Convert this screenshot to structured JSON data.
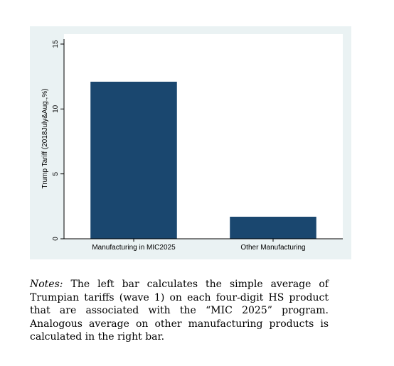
{
  "chart_data": {
    "type": "bar",
    "categories": [
      "Manufacturing in MIC2025",
      "Other Manufacturing"
    ],
    "values": [
      12.1,
      1.7
    ],
    "title": "",
    "xlabel": "",
    "ylabel": "Trump Tariff (2018July&Aug.,%)",
    "ylim": [
      0,
      15
    ],
    "yticks": [
      "0",
      "5",
      "10",
      "15"
    ],
    "grid": false,
    "colors": {
      "bar": "#1a476f",
      "background": "#eaf2f3",
      "plot": "#ffffff"
    }
  },
  "notes": {
    "lead": "Notes:",
    "text": "The left bar calculates the simple average of Trumpian tariffs (wave 1) on each four-digit HS product that are associated with the “MIC 2025” program. Analogous average on other manufacturing products is calculated in the right bar."
  }
}
